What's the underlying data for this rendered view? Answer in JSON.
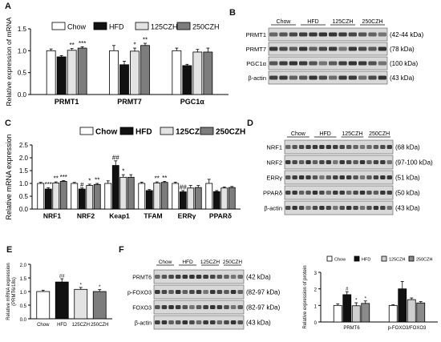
{
  "panel_labels": {
    "A": "A",
    "B": "B",
    "C": "C",
    "D": "D",
    "E": "E",
    "F": "F"
  },
  "colors": {
    "chow": "#ffffff",
    "hfd": "#111111",
    "czh125": "#e3e3e3",
    "czh250": "#7d7d7d",
    "f_chow": "#ffffff",
    "f_hfd": "#111111",
    "f_czh125": "#cfcfcf",
    "f_czh250": "#8a8a8a",
    "blot_bg": "#d8d8d8",
    "band": "#2a2a2a"
  },
  "blots": {
    "B": {
      "groups": [
        "Chow",
        "HFD",
        "125CZH",
        "250CZH"
      ],
      "rows": [
        {
          "name": "PRMT1",
          "kda": "(42-44 kDa)"
        },
        {
          "name": "PRMT7",
          "kda": "(78 kDa)"
        },
        {
          "name": "PGC1α",
          "kda": "(100 kDa)"
        },
        {
          "name": "β-actin",
          "kda": "(43 kDa)"
        }
      ]
    },
    "D": {
      "groups": [
        "Chow",
        "HFD",
        "125CZH",
        "250CZH"
      ],
      "rows": [
        {
          "name": "NRF1",
          "kda": "(68 kDa)"
        },
        {
          "name": "NRF2",
          "kda": "(97-100 kDa)"
        },
        {
          "name": "ERRγ",
          "kda": "(51 kDa)"
        },
        {
          "name": "PPARδ",
          "kda": "(50 kDa)"
        },
        {
          "name": "β-actin",
          "kda": "(43 kDa)"
        }
      ]
    },
    "F": {
      "groups": [
        "Chow",
        "HFD",
        "125CZH",
        "250CZH"
      ],
      "rows": [
        {
          "name": "PRMT6",
          "kda": "(42 kDa)"
        },
        {
          "name": "p-FOXO3",
          "kda": "(82-97 kDa)"
        },
        {
          "name": "FOXO3",
          "kda": "(82-97 kDa)"
        },
        {
          "name": "β-actin",
          "kda": "(43 kDa)"
        }
      ]
    }
  },
  "chart_data": [
    {
      "panel": "A",
      "type": "bar",
      "categories": [
        "PRMT1",
        "PRMT7",
        "PGC1α"
      ],
      "series": [
        {
          "name": "Chow",
          "values": [
            1.0,
            1.0,
            1.0
          ],
          "errors": [
            0.04,
            0.12,
            0.06
          ]
        },
        {
          "name": "HFD",
          "values": [
            0.86,
            0.68,
            0.66
          ],
          "errors": [
            0.03,
            0.08,
            0.03
          ]
        },
        {
          "name": "125CZH",
          "values": [
            1.01,
            0.99,
            0.97
          ],
          "errors": [
            0.04,
            0.07,
            0.06
          ]
        },
        {
          "name": "250CZH",
          "values": [
            1.06,
            1.12,
            0.97
          ],
          "errors": [
            0.03,
            0.05,
            0.09
          ]
        }
      ],
      "sig": [
        [
          "",
          "",
          "**",
          "***"
        ],
        [
          "",
          "",
          "*",
          "**"
        ],
        [
          "",
          "",
          "",
          ""
        ]
      ],
      "ylabel": "Relative expression of mRNA",
      "ylim": [
        0,
        1.5
      ],
      "yticks": [
        "0.0",
        "0.5",
        "1.0",
        "1.5"
      ],
      "legend_position": "top"
    },
    {
      "panel": "C",
      "type": "bar",
      "categories": [
        "NRF1",
        "NRF2",
        "Keap1",
        "TFAM",
        "ERRγ",
        "PPARδ"
      ],
      "series": [
        {
          "name": "Chow",
          "values": [
            1.0,
            1.0,
            1.0,
            1.0,
            1.0,
            1.0
          ],
          "errors": [
            0.04,
            0.04,
            0.1,
            0.05,
            0.05,
            0.16
          ]
        },
        {
          "name": "HFD",
          "values": [
            0.78,
            0.78,
            1.7,
            0.72,
            0.67,
            0.68
          ],
          "errors": [
            0.05,
            0.04,
            0.18,
            0.04,
            0.05,
            0.04
          ]
        },
        {
          "name": "125CZH",
          "values": [
            1.02,
            0.92,
            1.24,
            1.02,
            0.82,
            0.82
          ],
          "errors": [
            0.04,
            0.05,
            0.1,
            0.04,
            0.1,
            0.04
          ]
        },
        {
          "name": "250CZH",
          "values": [
            1.08,
            0.96,
            1.24,
            1.04,
            0.84,
            0.84
          ],
          "errors": [
            0.03,
            0.04,
            0.1,
            0.04,
            0.08,
            0.04
          ]
        }
      ],
      "sig": [
        [
          "",
          "***",
          "**",
          "***"
        ],
        [
          "",
          "#",
          "*",
          "**"
        ],
        [
          "",
          "##",
          "*",
          ""
        ],
        [
          "",
          "",
          "**",
          "**"
        ],
        [
          "",
          "##",
          "",
          ""
        ],
        [
          "",
          "",
          "",
          ""
        ]
      ],
      "ylabel": "Relative mRNA expression",
      "ylim": [
        0,
        2.5
      ],
      "yticks": [
        "0.0",
        "0.5",
        "1.0",
        "1.5",
        "2.0",
        "2.5"
      ],
      "legend_position": "top"
    },
    {
      "panel": "E",
      "type": "bar",
      "categories": [
        "Chow",
        "HFD",
        "125CZH",
        "250CZH"
      ],
      "values": [
        1.0,
        1.35,
        1.08,
        1.0
      ],
      "errors": [
        0.05,
        0.12,
        0.07,
        0.07
      ],
      "sig": [
        "",
        "##",
        "*",
        "*"
      ],
      "ylabel": "Relative mRNA expression\n(PRMT6/18s)",
      "ylim": [
        0,
        2.0
      ],
      "yticks": [
        "0.0",
        "0.5",
        "1.0",
        "1.5",
        "2.0"
      ]
    },
    {
      "panel": "F",
      "type": "bar",
      "categories": [
        "PRMT6",
        "p-FOXO3/FOXO3"
      ],
      "series": [
        {
          "name": "Chow",
          "values": [
            1.0,
            1.0
          ],
          "errors": [
            0.1,
            0.05
          ]
        },
        {
          "name": "HFD",
          "values": [
            1.65,
            2.0
          ],
          "errors": [
            0.18,
            0.45
          ]
        },
        {
          "name": "125CZH",
          "values": [
            0.98,
            1.35
          ],
          "errors": [
            0.18,
            0.1
          ]
        },
        {
          "name": "250CZH",
          "values": [
            1.12,
            1.15
          ],
          "errors": [
            0.15,
            0.08
          ]
        }
      ],
      "sig": [
        [
          "",
          "#",
          "*",
          "*"
        ],
        [
          "",
          "",
          "",
          ""
        ]
      ],
      "ylabel": "Relative expression of protein",
      "ylim": [
        0,
        3
      ],
      "yticks": [
        "0",
        "1",
        "2",
        "3"
      ],
      "legend_position": "top"
    }
  ]
}
